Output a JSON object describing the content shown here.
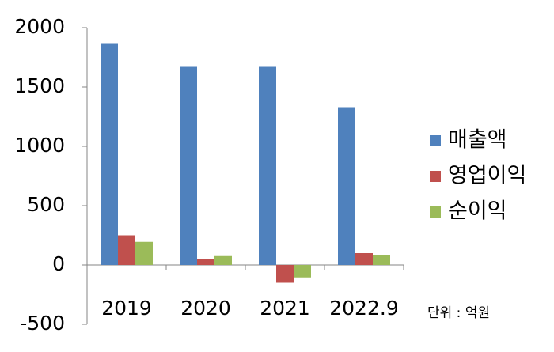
{
  "chart_data": {
    "type": "bar",
    "categories": [
      "2019",
      "2020",
      "2021",
      "2022.9"
    ],
    "series": [
      {
        "name": "매출액",
        "color": "#4f81bd",
        "values": [
          1870,
          1670,
          1670,
          1330
        ]
      },
      {
        "name": "영업이익",
        "color": "#c0504d",
        "values": [
          250,
          50,
          -150,
          100
        ]
      },
      {
        "name": "순이익",
        "color": "#9bbb59",
        "values": [
          195,
          75,
          -105,
          80
        ]
      }
    ],
    "ylim": [
      -500,
      2000
    ],
    "yticks": [
      -500,
      0,
      500,
      1000,
      1500,
      2000
    ],
    "grid": false,
    "legend": "right",
    "annotation": "단위 : 억원"
  }
}
